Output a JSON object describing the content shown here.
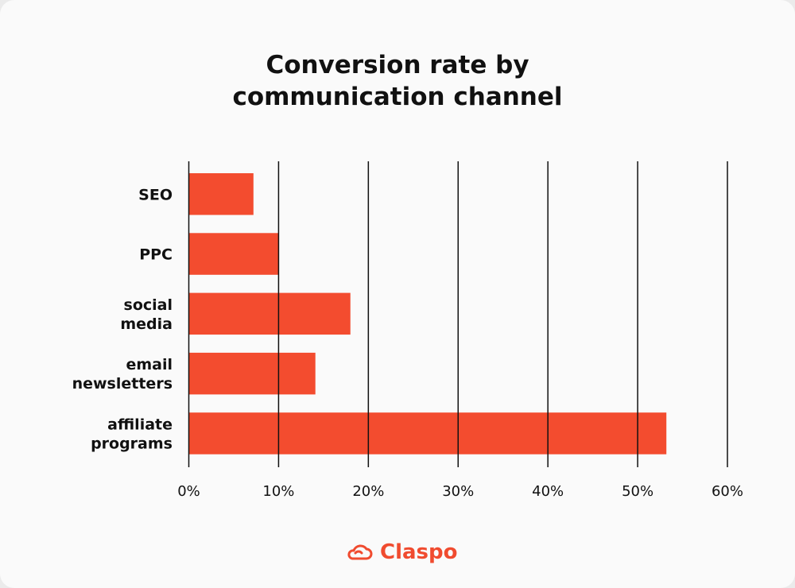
{
  "chart_data": {
    "type": "bar",
    "orientation": "horizontal",
    "title": "Conversion rate by communication channel",
    "title_lines": [
      "Conversion rate by",
      "communication channel"
    ],
    "categories": [
      [
        "SEO"
      ],
      [
        "PPC"
      ],
      [
        "social",
        "media"
      ],
      [
        "email",
        "newsletters"
      ],
      [
        "affiliate",
        "programs"
      ]
    ],
    "values": [
      7.2,
      10,
      18,
      14.1,
      53.2
    ],
    "xlim": [
      0,
      60
    ],
    "xticks": [
      0,
      10,
      20,
      30,
      40,
      50,
      60
    ],
    "xtick_labels": [
      "0%",
      "10%",
      "20%",
      "30%",
      "40%",
      "50%",
      "60%"
    ],
    "grid": "vertical",
    "bar_color": "#f34c2f"
  },
  "brand": {
    "name": "Claspo",
    "color": "#f04b2f"
  }
}
